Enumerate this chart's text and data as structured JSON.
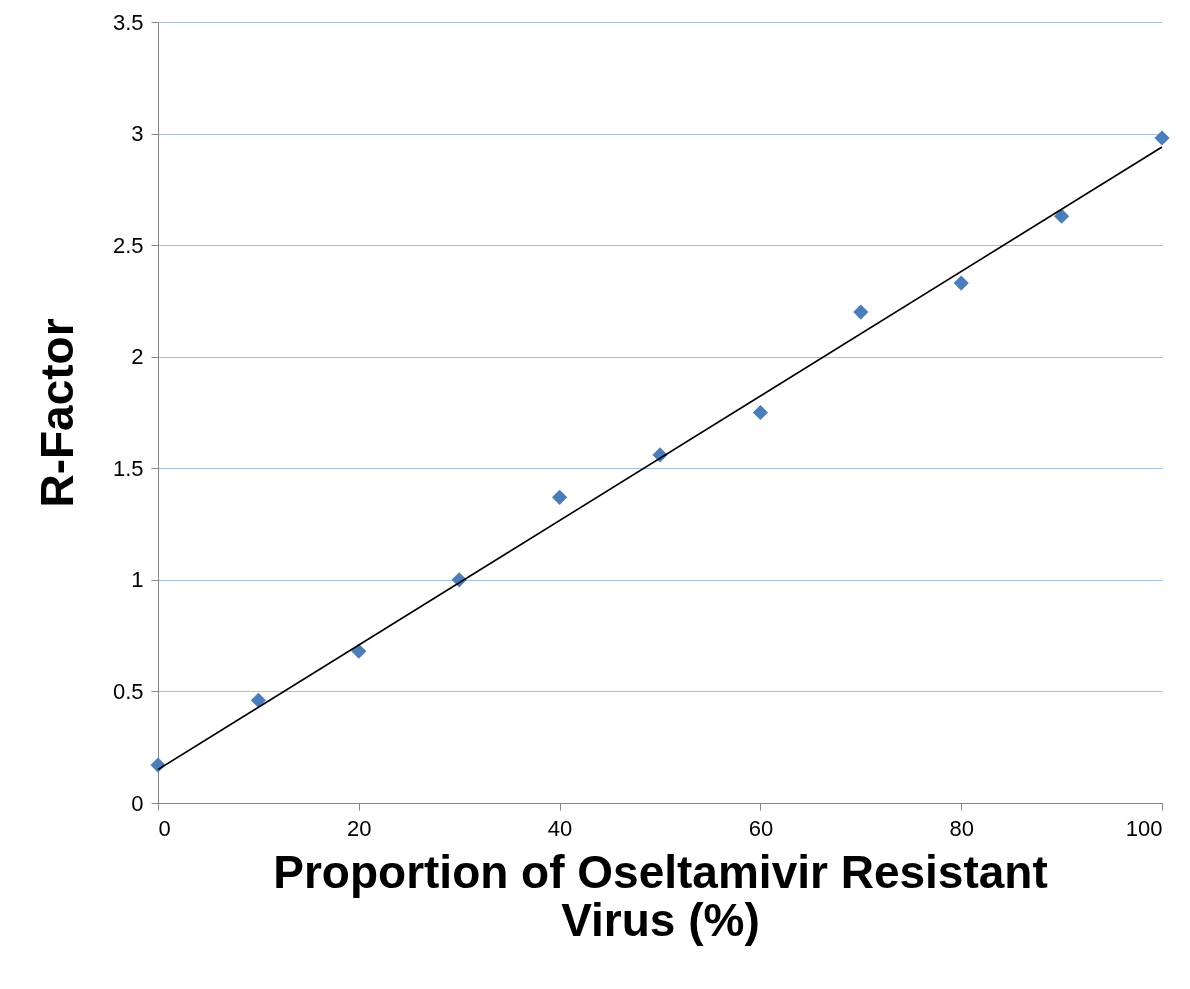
{
  "chart_data": {
    "type": "scatter",
    "xlabel": "Proportion of Oseltamivir Resistant Virus (%)",
    "ylabel": "R-Factor",
    "x": [
      0,
      10,
      20,
      30,
      40,
      50,
      60,
      70,
      80,
      90,
      100
    ],
    "series": [
      {
        "color": "#4a7ebb",
        "marker": "diamond",
        "values": [
          0.17,
          0.46,
          0.68,
          1.0,
          1.37,
          1.56,
          1.75,
          2.2,
          2.33,
          2.63,
          2.98
        ]
      },
      {
        "type": "line",
        "color": "#000000",
        "marker": "none",
        "x": [
          0,
          100
        ],
        "values": [
          0.15,
          2.94
        ]
      }
    ],
    "xlim": [
      0,
      100
    ],
    "xticks": [
      0,
      20,
      40,
      60,
      80,
      100
    ],
    "ylim": [
      0,
      3.5
    ],
    "yticks": [
      0,
      0.5,
      1,
      1.5,
      2,
      2.5,
      3,
      3.5
    ],
    "grid": "y"
  }
}
